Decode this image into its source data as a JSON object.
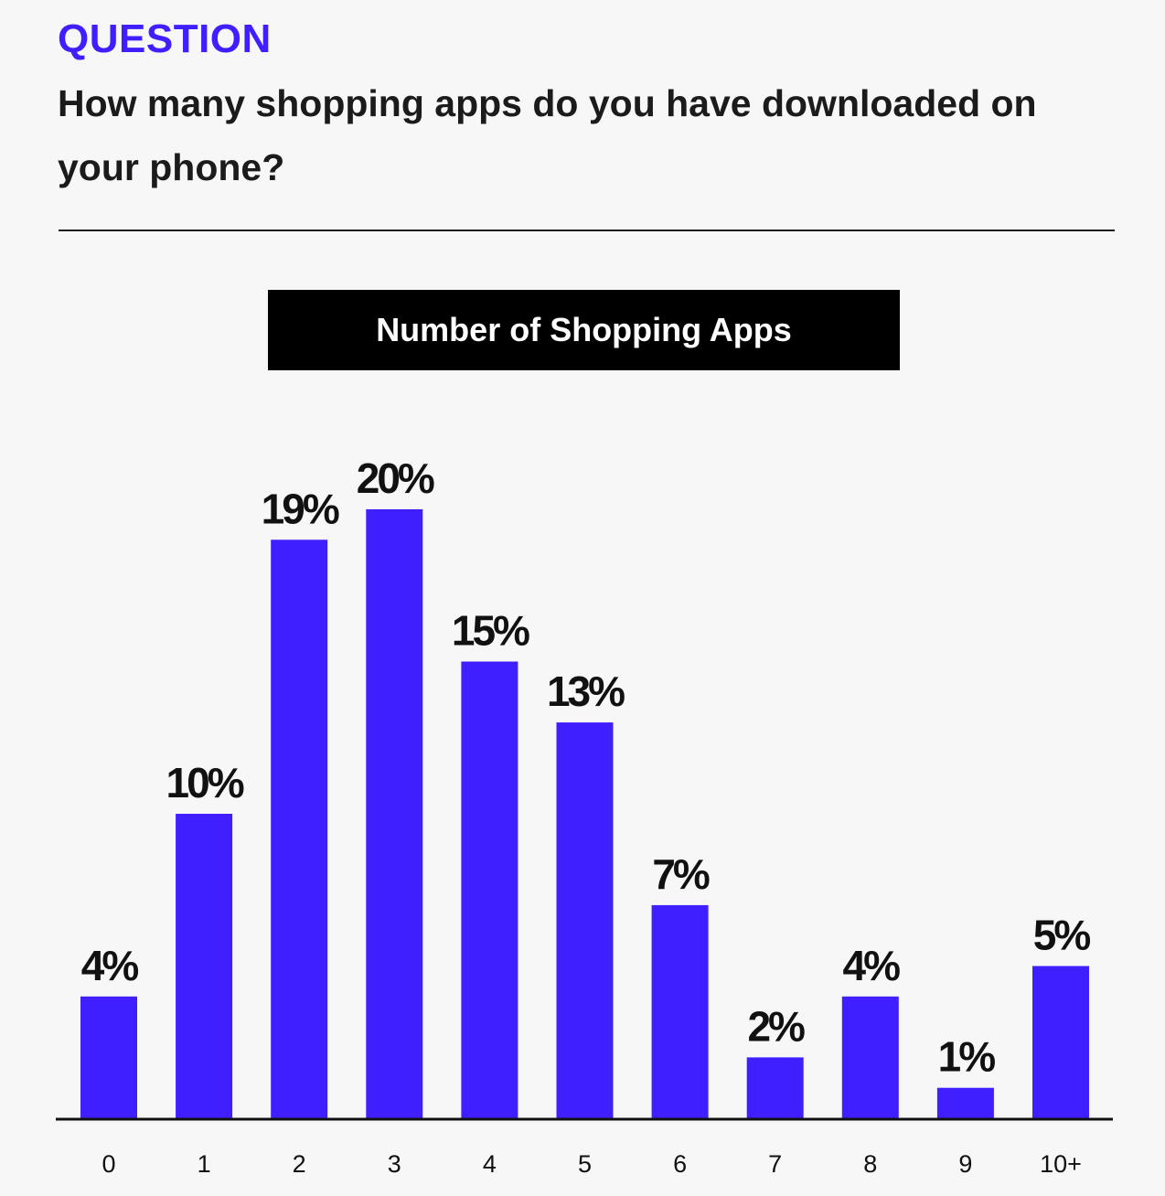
{
  "header": {
    "label": "QUESTION",
    "question": "How many shopping apps do you have downloaded on your phone?"
  },
  "colors": {
    "accent": "#3f1fff",
    "title_box": "#000000",
    "text": "#1b1b1b",
    "background": "#f7f7f7"
  },
  "chart_data": {
    "type": "bar",
    "title": "Number of Shopping Apps",
    "xlabel": "",
    "ylabel": "",
    "categories": [
      "0",
      "1",
      "2",
      "3",
      "4",
      "5",
      "6",
      "7",
      "8",
      "9",
      "10+"
    ],
    "values": [
      4,
      10,
      19,
      20,
      15,
      13,
      7,
      2,
      4,
      1,
      5
    ],
    "value_labels": [
      "4%",
      "10%",
      "19%",
      "20%",
      "15%",
      "13%",
      "7%",
      "2%",
      "4%",
      "1%",
      "5%"
    ],
    "unit": "%",
    "ylim": [
      0,
      20
    ],
    "grid": false,
    "legend": "none",
    "bar_color": "#3f1fff"
  }
}
